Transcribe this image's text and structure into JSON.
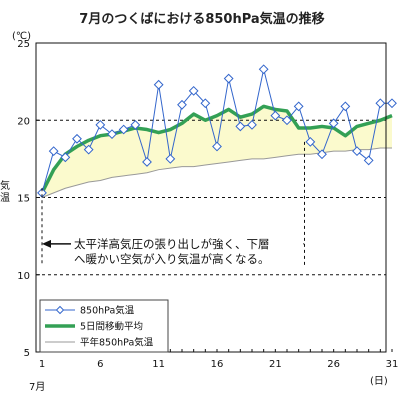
{
  "chart_data": {
    "type": "line",
    "title": "7月のつくばにおける850hPa気温の推移",
    "y_unit": "(℃)",
    "ylabel": "気温",
    "x_unit": "(日)",
    "x_month_label": "7月",
    "ylim": [
      5,
      25
    ],
    "xlim": [
      1,
      31
    ],
    "y_ticks": [
      5,
      10,
      15,
      20,
      25
    ],
    "x_ticks": [
      1,
      6,
      11,
      16,
      21,
      26,
      31
    ],
    "grid": "horizontal dashed at 10, 15, 20",
    "legend_position": "bottom-left",
    "colors": {
      "series_850": "#3366cc",
      "series_ma5": "#33a055",
      "series_normal": "#999999",
      "fill_above_normal": "#fbfacd",
      "arrow": "#111111"
    },
    "x": [
      1,
      2,
      3,
      4,
      5,
      6,
      7,
      8,
      9,
      10,
      11,
      12,
      13,
      14,
      15,
      16,
      17,
      18,
      19,
      20,
      21,
      22,
      23,
      24,
      25,
      26,
      27,
      28,
      29,
      30,
      31
    ],
    "series": [
      {
        "name": "850hPa気温",
        "values": [
          15.3,
          18.0,
          17.6,
          18.8,
          18.1,
          19.7,
          19.1,
          19.4,
          19.7,
          17.3,
          22.3,
          17.5,
          21.0,
          21.9,
          21.1,
          18.3,
          22.7,
          19.6,
          19.7,
          23.3,
          20.3,
          20.0,
          20.9,
          18.6,
          17.8,
          19.8,
          20.9,
          18.0,
          17.4,
          21.1,
          21.1
        ]
      },
      {
        "name": "5日間移動平均",
        "values": [
          15.3,
          16.8,
          17.8,
          18.3,
          18.7,
          19.0,
          19.1,
          19.3,
          19.5,
          19.4,
          19.2,
          19.4,
          19.8,
          20.4,
          20.0,
          20.3,
          20.7,
          20.2,
          20.4,
          20.9,
          20.7,
          20.6,
          19.5,
          19.5,
          19.6,
          19.5,
          19.0,
          19.6,
          19.8,
          20.0,
          20.3
        ]
      },
      {
        "name": "平年850hPa気温",
        "values": [
          15.0,
          15.3,
          15.6,
          15.8,
          16.0,
          16.1,
          16.3,
          16.4,
          16.5,
          16.6,
          16.8,
          16.9,
          17.0,
          17.0,
          17.1,
          17.2,
          17.3,
          17.4,
          17.5,
          17.5,
          17.6,
          17.7,
          17.8,
          17.8,
          17.9,
          18.0,
          18.0,
          18.1,
          18.1,
          18.2,
          18.2
        ]
      }
    ],
    "annotation": {
      "text_line1": "太平洋高気圧の張り出しが強く、下層",
      "text_line2": "へ暖かい空気が入り気温が高くなる。",
      "arrow_from": 1,
      "arrow_to": 23.5,
      "arrow_y": 12.0
    }
  }
}
